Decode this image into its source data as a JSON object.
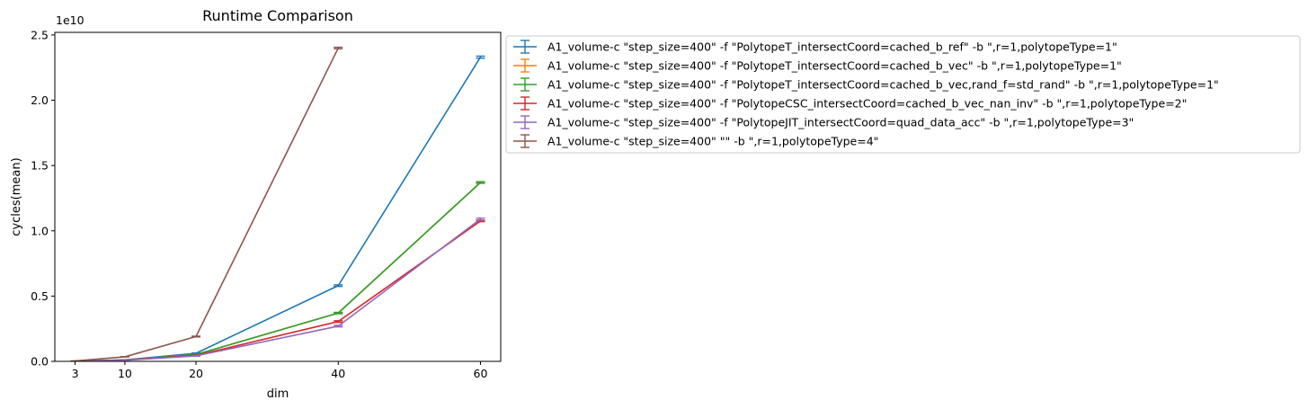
{
  "chart_data": {
    "type": "line",
    "title": "Runtime Comparison",
    "xlabel": "dim",
    "ylabel": "cycles(mean)",
    "y_offset_label": "1e10",
    "x_ticks": [
      3,
      10,
      20,
      40,
      60
    ],
    "x_tick_labels": [
      "3",
      "10",
      "20",
      "40",
      "60"
    ],
    "xlim": [
      0.15,
      62.85
    ],
    "y_ticks": [
      0,
      0.5,
      1.0,
      1.5,
      2.0,
      2.5
    ],
    "y_tick_labels": [
      "0.0",
      "0.5",
      "1.0",
      "1.5",
      "2.0",
      "2.5"
    ],
    "ylim": [
      0,
      2.52
    ],
    "y_unit_scale": 10000000000,
    "grid": false,
    "legend_position": "outside-right",
    "error_bars": true,
    "series": [
      {
        "name": "A1_volume-c \"step_size=400\" -f \"PolytopeT_intersectCoord=cached_b_ref\" -b \",r=1,polytopeType=1\"",
        "color": "#1f77b4",
        "x": [
          3,
          10,
          20,
          40,
          60
        ],
        "y": [
          0.002,
          0.012,
          0.062,
          0.58,
          2.33
        ],
        "err": [
          0.0002,
          0.001,
          0.002,
          0.006,
          0.008
        ]
      },
      {
        "name": "A1_volume-c \"step_size=400\" -f \"PolytopeT_intersectCoord=cached_b_vec\" -b \",r=1,polytopeType=1\"",
        "color": "#ff7f0e",
        "x": [
          3,
          10,
          20,
          40,
          60
        ],
        "y": [
          0.002,
          0.01,
          0.052,
          0.37,
          1.37
        ],
        "err": [
          0.0002,
          0.001,
          0.002,
          0.005,
          0.006
        ]
      },
      {
        "name": "A1_volume-c \"step_size=400\" -f \"PolytopeT_intersectCoord=cached_b_vec,rand_f=std_rand\" -b \",r=1,polytopeType=1\"",
        "color": "#2ca02c",
        "x": [
          3,
          10,
          20,
          40,
          60
        ],
        "y": [
          0.002,
          0.01,
          0.052,
          0.37,
          1.37
        ],
        "err": [
          0.0002,
          0.001,
          0.002,
          0.005,
          0.006
        ]
      },
      {
        "name": "A1_volume-c \"step_size=400\" -f \"PolytopeCSC_intersectCoord=cached_b_vec_nan_inv\" -b \",r=1,polytopeType=2\"",
        "color": "#d62728",
        "x": [
          3,
          10,
          20,
          40,
          60
        ],
        "y": [
          0.002,
          0.009,
          0.045,
          0.305,
          1.075
        ],
        "err": [
          0.0002,
          0.001,
          0.002,
          0.006,
          0.005
        ]
      },
      {
        "name": "A1_volume-c \"step_size=400\" -f \"PolytopeJIT_intersectCoord=quad_data_acc\" -b \",r=1,polytopeType=3\"",
        "color": "#9467bd",
        "x": [
          3,
          10,
          20,
          40,
          60
        ],
        "y": [
          0.002,
          0.008,
          0.042,
          0.27,
          1.09
        ],
        "err": [
          0.0002,
          0.001,
          0.002,
          0.006,
          0.007
        ]
      },
      {
        "name": "A1_volume-c \"step_size=400\"  \"\" -b \",r=1,polytopeType=4\"",
        "color": "#8c564b",
        "x": [
          3,
          10,
          20,
          40
        ],
        "y": [
          0.003,
          0.035,
          0.19,
          2.4
        ],
        "err": [
          0.0002,
          0.001,
          0.003,
          0.006
        ]
      }
    ]
  }
}
